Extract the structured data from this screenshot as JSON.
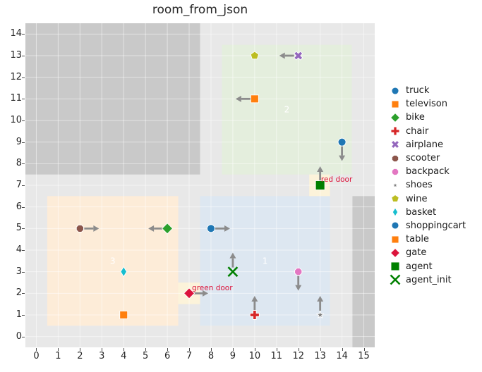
{
  "chart_data": {
    "type": "scatter",
    "title": "room_from_json",
    "axes": {
      "xlim": [
        -0.5,
        15.5
      ],
      "ylim": [
        -0.5,
        14.5
      ],
      "xticks": [
        0,
        1,
        2,
        3,
        4,
        5,
        6,
        7,
        8,
        9,
        10,
        11,
        12,
        13,
        14,
        15
      ],
      "yticks": [
        0,
        1,
        2,
        3,
        4,
        5,
        6,
        7,
        8,
        9,
        10,
        11,
        12,
        13,
        14
      ],
      "grid": true,
      "bg_color": "#e8e8e8",
      "grid_color": "rgba(255,255,255,0.5)",
      "tick_color": "#262626"
    },
    "regions": [
      {
        "name": "wall-top-left",
        "x0": -0.5,
        "y0": 7.5,
        "x1": 7.5,
        "y1": 14.5,
        "color": "#c9c9c9",
        "label": ""
      },
      {
        "name": "wall-right",
        "x0": 14.48,
        "y0": -0.5,
        "x1": 15.5,
        "y1": 6.5,
        "color": "#c9c9c9",
        "label": ""
      },
      {
        "name": "room-2",
        "x0": 8.5,
        "y0": 7.5,
        "x1": 14.45,
        "y1": 13.5,
        "color": "#e4eedd",
        "label": "2"
      },
      {
        "name": "room-3",
        "x0": 0.5,
        "y0": 0.5,
        "x1": 6.5,
        "y1": 6.5,
        "color": "#fdecd8",
        "label": "3"
      },
      {
        "name": "room-1",
        "x0": 7.5,
        "y0": 0.5,
        "x1": 13.45,
        "y1": 6.5,
        "color": "#dde7f1",
        "label": "1"
      },
      {
        "name": "red-door-patch",
        "x0": 12.5,
        "y0": 6.5,
        "x1": 13.45,
        "y1": 7.5,
        "color": "#fcf3da",
        "label": ""
      },
      {
        "name": "green-door-patch",
        "x0": 6.5,
        "y0": 1.5,
        "x1": 7.5,
        "y1": 2.5,
        "color": "#fcf3da",
        "label": ""
      }
    ],
    "points": [
      {
        "label": "truck",
        "x": 14,
        "y": 9,
        "marker": "circle",
        "color": "#1f77b4",
        "r": 5.5,
        "arrow": "down"
      },
      {
        "label": "televison",
        "x": 10,
        "y": 11,
        "marker": "square",
        "color": "#ff7f0e",
        "r": 5.5,
        "arrow": "left"
      },
      {
        "label": "bike",
        "x": 6,
        "y": 5,
        "marker": "diamond",
        "color": "#2ca02c",
        "r": 7.5,
        "arrow": "left"
      },
      {
        "label": "chair",
        "x": 10,
        "y": 1,
        "marker": "plus",
        "color": "#d62728",
        "r": 6.5,
        "arrow": "up"
      },
      {
        "label": "airplane",
        "x": 12,
        "y": 13,
        "marker": "X",
        "color": "#9467bd",
        "r": 6,
        "arrow": "left"
      },
      {
        "label": "scooter",
        "x": 2,
        "y": 5,
        "marker": "octagon",
        "color": "#8c564b",
        "r": 5.5,
        "arrow": "right"
      },
      {
        "label": "backpack",
        "x": 12,
        "y": 3,
        "marker": "octagon",
        "color": "#e377c2",
        "r": 5.5,
        "arrow": "down"
      },
      {
        "label": "shoes",
        "x": 13,
        "y": 1,
        "marker": "star",
        "color": "#7f7f7f",
        "r": 5,
        "arrow": "up"
      },
      {
        "label": "wine",
        "x": 10,
        "y": 13,
        "marker": "pentagon",
        "color": "#bcbd22",
        "r": 6,
        "arrow": ""
      },
      {
        "label": "basket",
        "x": 4,
        "y": 3,
        "marker": "thin-diamond",
        "color": "#17becf",
        "r": 7,
        "arrow": ""
      },
      {
        "label": "shoppingcart",
        "x": 8,
        "y": 5,
        "marker": "circle",
        "color": "#1f77b4",
        "r": 5.5,
        "arrow": "right"
      },
      {
        "label": "table",
        "x": 4,
        "y": 1,
        "marker": "square",
        "color": "#ff7f0e",
        "r": 5.5,
        "arrow": ""
      },
      {
        "label": "gate",
        "x": 7,
        "y": 2,
        "marker": "diamond",
        "color": "#dc143c",
        "r": 7.5,
        "arrow": "right"
      },
      {
        "label": "agent",
        "x": 13,
        "y": 7,
        "marker": "square",
        "color": "#008000",
        "r": 6.5,
        "arrow": "up"
      },
      {
        "label": "agent_init",
        "x": 9,
        "y": 3,
        "marker": "xthin",
        "color": "#008000",
        "r": 6.5,
        "arrow": "up"
      }
    ],
    "annotations": [
      {
        "text": "red door",
        "x": 13.04,
        "y": 7.26,
        "color": "#dc143c"
      },
      {
        "text": "green door",
        "x": 7.13,
        "y": 2.24,
        "color": "#dc143c"
      }
    ],
    "arrow_color": "#8c8c8c",
    "region_label_color": "#ffffff",
    "legend": {
      "position": "right",
      "items": [
        {
          "label": "truck",
          "marker": "circle",
          "color": "#1f77b4",
          "r": 5
        },
        {
          "label": "televison",
          "marker": "square",
          "color": "#ff7f0e",
          "r": 5
        },
        {
          "label": "bike",
          "marker": "diamond",
          "color": "#2ca02c",
          "r": 6.5
        },
        {
          "label": "chair",
          "marker": "plus",
          "color": "#d62728",
          "r": 6
        },
        {
          "label": "airplane",
          "marker": "X",
          "color": "#9467bd",
          "r": 5.5
        },
        {
          "label": "scooter",
          "marker": "octagon",
          "color": "#8c564b",
          "r": 5
        },
        {
          "label": "backpack",
          "marker": "octagon",
          "color": "#e377c2",
          "r": 5
        },
        {
          "label": "shoes",
          "marker": "star",
          "color": "#7f7f7f",
          "r": 4
        },
        {
          "label": "wine",
          "marker": "pentagon",
          "color": "#bcbd22",
          "r": 5.5
        },
        {
          "label": "basket",
          "marker": "thin-diamond",
          "color": "#17becf",
          "r": 6
        },
        {
          "label": "shoppingcart",
          "marker": "circle",
          "color": "#1f77b4",
          "r": 5
        },
        {
          "label": "table",
          "marker": "square",
          "color": "#ff7f0e",
          "r": 5
        },
        {
          "label": "gate",
          "marker": "diamond",
          "color": "#dc143c",
          "r": 6.5
        },
        {
          "label": "agent",
          "marker": "square",
          "color": "#008000",
          "r": 6
        },
        {
          "label": "agent_init",
          "marker": "xthin",
          "color": "#008000",
          "r": 6.5
        }
      ]
    }
  }
}
